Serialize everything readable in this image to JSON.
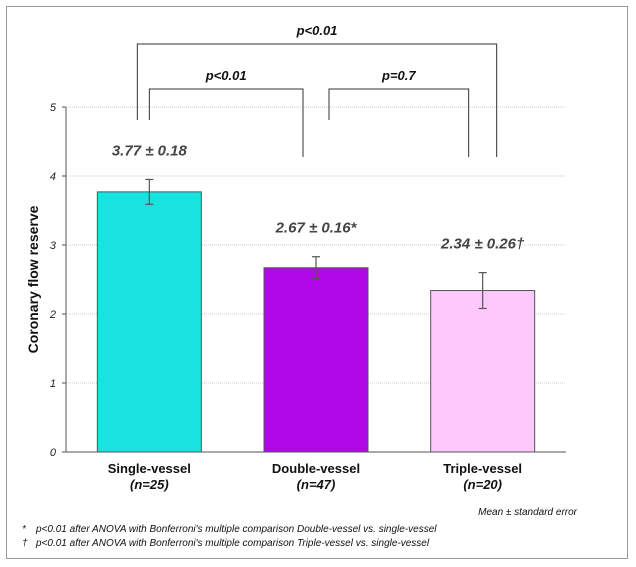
{
  "chart_data": {
    "type": "bar",
    "ylabel": "Coronary flow reserve",
    "ylim": [
      0,
      5
    ],
    "yticks": [
      0,
      1,
      2,
      3,
      4,
      5
    ],
    "grid": true,
    "categories": [
      "Single-vessel",
      "Double-vessel",
      "Triple-vessel"
    ],
    "n_labels": [
      "(n=25)",
      "(n=47)",
      "(n=20)"
    ],
    "values": [
      3.77,
      2.67,
      2.34
    ],
    "errors": [
      0.18,
      0.16,
      0.26
    ],
    "value_labels": [
      "3.77 ± 0.18",
      "2.67 ± 0.16*",
      "2.34 ± 0.26†"
    ],
    "colors": [
      "#19e3e0",
      "#b008e8",
      "#fdc8fc"
    ],
    "comparisons": [
      {
        "from": 0,
        "to": 2,
        "label": "p<0.01"
      },
      {
        "from": 0,
        "to": 1,
        "label": "p<0.01"
      },
      {
        "from": 1,
        "to": 2,
        "label": "p=0.7"
      }
    ],
    "annotation": "Mean ± standard error",
    "footnotes": [
      {
        "symbol": "*",
        "text": "p<0.01 after ANOVA with Bonferroni's multiple comparison  Double-vessel vs. single-vessel"
      },
      {
        "symbol": "†",
        "text": "p<0.01 after ANOVA with Bonferroni's multiple comparison  Triple-vessel vs. single-vessel"
      }
    ]
  }
}
